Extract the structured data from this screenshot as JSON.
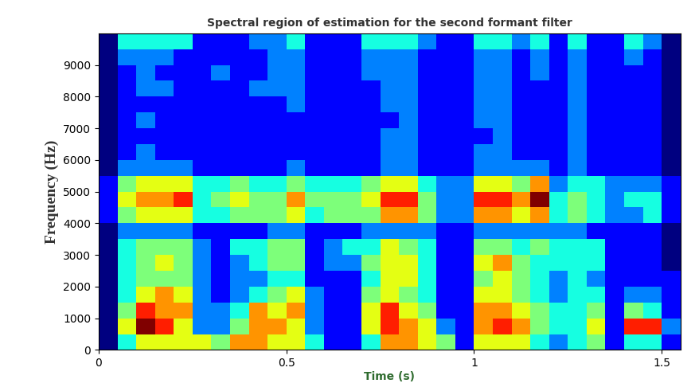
{
  "chart_data": {
    "type": "heatmap",
    "title": "Spectral region of estimation for the second formant filter",
    "x_label": "Time (s)",
    "y_label": "Frequency (Hz)",
    "x": [
      0,
      0.05,
      0.1,
      0.15,
      0.2,
      0.25,
      0.3,
      0.35,
      0.4,
      0.45,
      0.5,
      0.55,
      0.6,
      0.65,
      0.7,
      0.75,
      0.8,
      0.85,
      0.9,
      0.95,
      1.0,
      1.05,
      1.1,
      1.15,
      1.2,
      1.25,
      1.3,
      1.35,
      1.4,
      1.45,
      1.5,
      1.55
    ],
    "y": [
      0,
      500,
      1000,
      1500,
      2000,
      2500,
      3000,
      3500,
      4000,
      4500,
      5000,
      5500,
      6000,
      6500,
      7000,
      7500,
      8000,
      8500,
      9000,
      9500,
      10000
    ],
    "cells": [
      [
        1,
        4,
        6,
        6,
        6,
        6,
        5,
        7,
        7,
        6,
        6,
        4,
        2,
        2,
        4,
        7,
        7,
        6,
        5,
        2,
        6,
        6,
        6,
        4,
        3,
        4,
        5,
        2,
        4,
        4,
        2
      ],
      [
        1,
        6,
        9,
        8,
        6,
        3,
        3,
        5,
        7,
        7,
        6,
        3,
        2,
        2,
        6,
        8,
        7,
        6,
        3,
        2,
        7,
        8,
        7,
        5,
        4,
        4,
        6,
        2,
        8,
        8,
        3
      ],
      [
        1,
        5,
        8,
        7,
        7,
        3,
        3,
        4,
        7,
        6,
        7,
        3,
        2,
        2,
        6,
        8,
        6,
        5,
        2,
        2,
        7,
        7,
        6,
        5,
        4,
        4,
        5,
        2,
        5,
        4,
        2
      ],
      [
        1,
        4,
        6,
        7,
        6,
        3,
        2,
        3,
        4,
        5,
        6,
        3,
        2,
        2,
        5,
        6,
        5,
        4,
        2,
        2,
        6,
        6,
        5,
        4,
        3,
        4,
        4,
        2,
        3,
        3,
        2
      ],
      [
        1,
        4,
        5,
        5,
        5,
        3,
        2,
        3,
        3,
        4,
        4,
        2,
        2,
        2,
        4,
        6,
        6,
        4,
        2,
        2,
        5,
        6,
        5,
        4,
        3,
        4,
        3,
        2,
        2,
        2,
        2
      ],
      [
        1,
        4,
        5,
        6,
        5,
        3,
        2,
        3,
        4,
        5,
        5,
        2,
        3,
        3,
        5,
        6,
        6,
        4,
        2,
        2,
        6,
        7,
        5,
        4,
        4,
        4,
        4,
        2,
        2,
        2,
        1
      ],
      [
        1,
        4,
        5,
        5,
        5,
        3,
        2,
        4,
        4,
        5,
        5,
        2,
        3,
        4,
        4,
        6,
        5,
        4,
        2,
        2,
        5,
        5,
        4,
        5,
        4,
        4,
        4,
        2,
        2,
        2,
        1
      ],
      [
        1,
        3,
        3,
        3,
        3,
        2,
        2,
        2,
        2,
        3,
        3,
        2,
        2,
        2,
        3,
        3,
        3,
        3,
        2,
        2,
        3,
        3,
        3,
        3,
        3,
        3,
        2,
        2,
        2,
        2,
        1
      ],
      [
        2,
        5,
        6,
        6,
        6,
        4,
        4,
        5,
        5,
        5,
        6,
        4,
        5,
        5,
        5,
        7,
        7,
        5,
        3,
        3,
        7,
        7,
        6,
        7,
        4,
        5,
        4,
        3,
        3,
        4,
        2
      ],
      [
        2,
        6,
        7,
        7,
        8,
        4,
        5,
        6,
        5,
        5,
        7,
        5,
        5,
        5,
        6,
        8,
        8,
        5,
        3,
        3,
        8,
        8,
        7,
        9,
        4,
        5,
        4,
        3,
        4,
        4,
        2
      ],
      [
        2,
        5,
        6,
        6,
        6,
        4,
        4,
        5,
        4,
        4,
        5,
        4,
        4,
        4,
        5,
        6,
        6,
        4,
        3,
        3,
        6,
        6,
        5,
        7,
        3,
        4,
        4,
        3,
        3,
        3,
        2
      ],
      [
        1,
        3,
        3,
        3,
        3,
        2,
        2,
        2,
        2,
        2,
        3,
        2,
        2,
        2,
        2,
        3,
        3,
        2,
        2,
        2,
        3,
        3,
        3,
        3,
        2,
        3,
        2,
        2,
        2,
        2,
        1
      ],
      [
        1,
        2,
        3,
        2,
        2,
        2,
        2,
        2,
        2,
        2,
        2,
        2,
        2,
        2,
        2,
        3,
        3,
        2,
        2,
        2,
        3,
        3,
        2,
        2,
        2,
        3,
        2,
        2,
        2,
        2,
        1
      ],
      [
        1,
        2,
        2,
        2,
        2,
        2,
        2,
        2,
        2,
        2,
        2,
        2,
        2,
        2,
        2,
        3,
        3,
        2,
        2,
        2,
        2,
        3,
        2,
        2,
        2,
        3,
        2,
        2,
        2,
        2,
        1
      ],
      [
        1,
        2,
        3,
        2,
        2,
        2,
        2,
        2,
        2,
        2,
        2,
        2,
        2,
        2,
        2,
        2,
        3,
        2,
        2,
        2,
        3,
        3,
        2,
        2,
        2,
        3,
        2,
        2,
        2,
        2,
        1
      ],
      [
        1,
        2,
        2,
        2,
        2,
        2,
        2,
        2,
        2,
        2,
        3,
        2,
        2,
        2,
        2,
        3,
        3,
        2,
        2,
        2,
        3,
        3,
        2,
        2,
        2,
        3,
        2,
        2,
        2,
        2,
        1
      ],
      [
        1,
        2,
        3,
        3,
        2,
        2,
        2,
        2,
        3,
        3,
        3,
        2,
        2,
        2,
        2,
        3,
        3,
        2,
        2,
        2,
        3,
        3,
        2,
        2,
        2,
        3,
        2,
        2,
        2,
        2,
        1
      ],
      [
        1,
        2,
        3,
        2,
        2,
        2,
        3,
        2,
        2,
        3,
        3,
        2,
        2,
        2,
        3,
        3,
        3,
        2,
        2,
        2,
        3,
        3,
        2,
        3,
        2,
        3,
        2,
        2,
        2,
        2,
        1
      ],
      [
        1,
        3,
        3,
        3,
        2,
        2,
        2,
        2,
        2,
        3,
        3,
        2,
        2,
        2,
        3,
        3,
        3,
        2,
        2,
        2,
        3,
        3,
        2,
        3,
        2,
        3,
        2,
        2,
        3,
        2,
        1
      ],
      [
        1,
        4,
        4,
        4,
        4,
        2,
        2,
        2,
        3,
        3,
        4,
        2,
        2,
        2,
        4,
        4,
        4,
        3,
        2,
        2,
        4,
        4,
        3,
        4,
        2,
        4,
        2,
        2,
        4,
        3,
        1
      ]
    ],
    "xlim": [
      0,
      1.55
    ],
    "ylim": [
      0,
      10000
    ],
    "xticks": [
      0,
      0.5,
      1,
      1.5
    ],
    "yticks": [
      0,
      1000,
      2000,
      3000,
      4000,
      5000,
      6000,
      7000,
      8000,
      9000
    ]
  }
}
